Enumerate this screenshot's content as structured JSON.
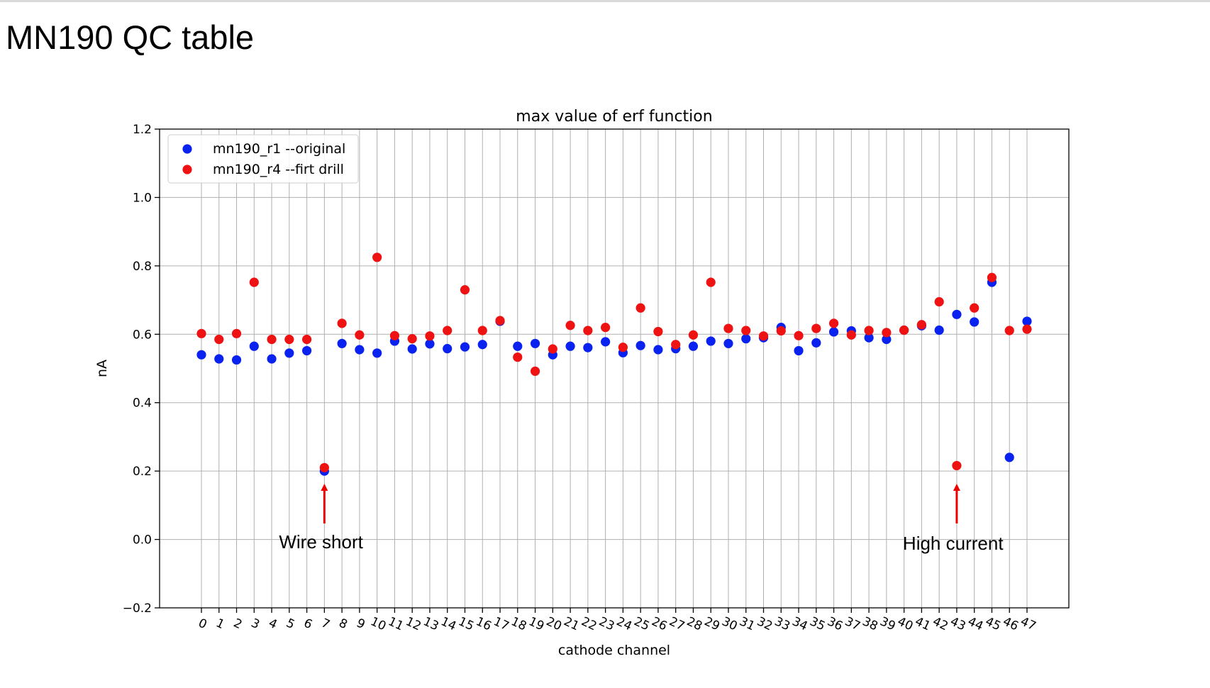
{
  "slide": {
    "title": "MN190 QC table"
  },
  "colors": {
    "series_r1": "#0a22f0",
    "series_r4": "#ee1212",
    "arrow": "#ee0000",
    "grid": "#b0b0b0"
  },
  "annotations": [
    {
      "text": "Wire short",
      "target_channel": 7
    },
    {
      "text": "High current",
      "target_channel": 43
    }
  ],
  "chart_data": {
    "type": "scatter",
    "title": "max value of erf function",
    "xlabel": "cathode channel",
    "ylabel": "nA",
    "ylim": [
      -0.2,
      1.2
    ],
    "yticks": [
      "-0.2",
      "0.0",
      "0.2",
      "0.4",
      "0.6",
      "0.8",
      "1.0",
      "1.2"
    ],
    "x": [
      0,
      1,
      2,
      3,
      4,
      5,
      6,
      7,
      8,
      9,
      10,
      11,
      12,
      13,
      14,
      15,
      16,
      17,
      18,
      19,
      20,
      21,
      22,
      23,
      24,
      25,
      26,
      27,
      28,
      29,
      30,
      31,
      32,
      33,
      34,
      35,
      36,
      37,
      38,
      39,
      40,
      41,
      42,
      43,
      44,
      45,
      46,
      47
    ],
    "grid": true,
    "legend_position": "top-left",
    "series": [
      {
        "name": "mn190_r1 --original",
        "color": "#0a22f0",
        "values": [
          0.54,
          0.528,
          0.525,
          0.565,
          0.528,
          0.545,
          0.552,
          0.2,
          0.573,
          0.555,
          0.545,
          0.58,
          0.557,
          0.572,
          0.558,
          0.563,
          0.57,
          0.638,
          0.565,
          0.573,
          0.54,
          0.565,
          0.561,
          0.578,
          0.546,
          0.567,
          0.555,
          0.558,
          0.565,
          0.58,
          0.573,
          0.587,
          0.59,
          0.62,
          0.552,
          0.575,
          0.607,
          0.61,
          0.59,
          0.585,
          0.612,
          0.625,
          0.612,
          0.658,
          0.636,
          0.752,
          0.24,
          0.638
        ]
      },
      {
        "name": "mn190_r4 --firt drill",
        "color": "#ee1212",
        "values": [
          0.602,
          0.585,
          0.602,
          0.752,
          0.585,
          0.585,
          0.585,
          0.21,
          0.632,
          0.598,
          0.825,
          0.596,
          0.587,
          0.595,
          0.611,
          0.73,
          0.611,
          0.64,
          0.533,
          0.492,
          0.557,
          0.626,
          0.611,
          0.62,
          0.562,
          0.677,
          0.608,
          0.57,
          0.598,
          0.752,
          0.617,
          0.611,
          0.595,
          0.61,
          0.596,
          0.617,
          0.632,
          0.598,
          0.611,
          0.605,
          0.612,
          0.628,
          0.695,
          0.216,
          0.677,
          0.766,
          0.611,
          0.615
        ]
      }
    ]
  }
}
